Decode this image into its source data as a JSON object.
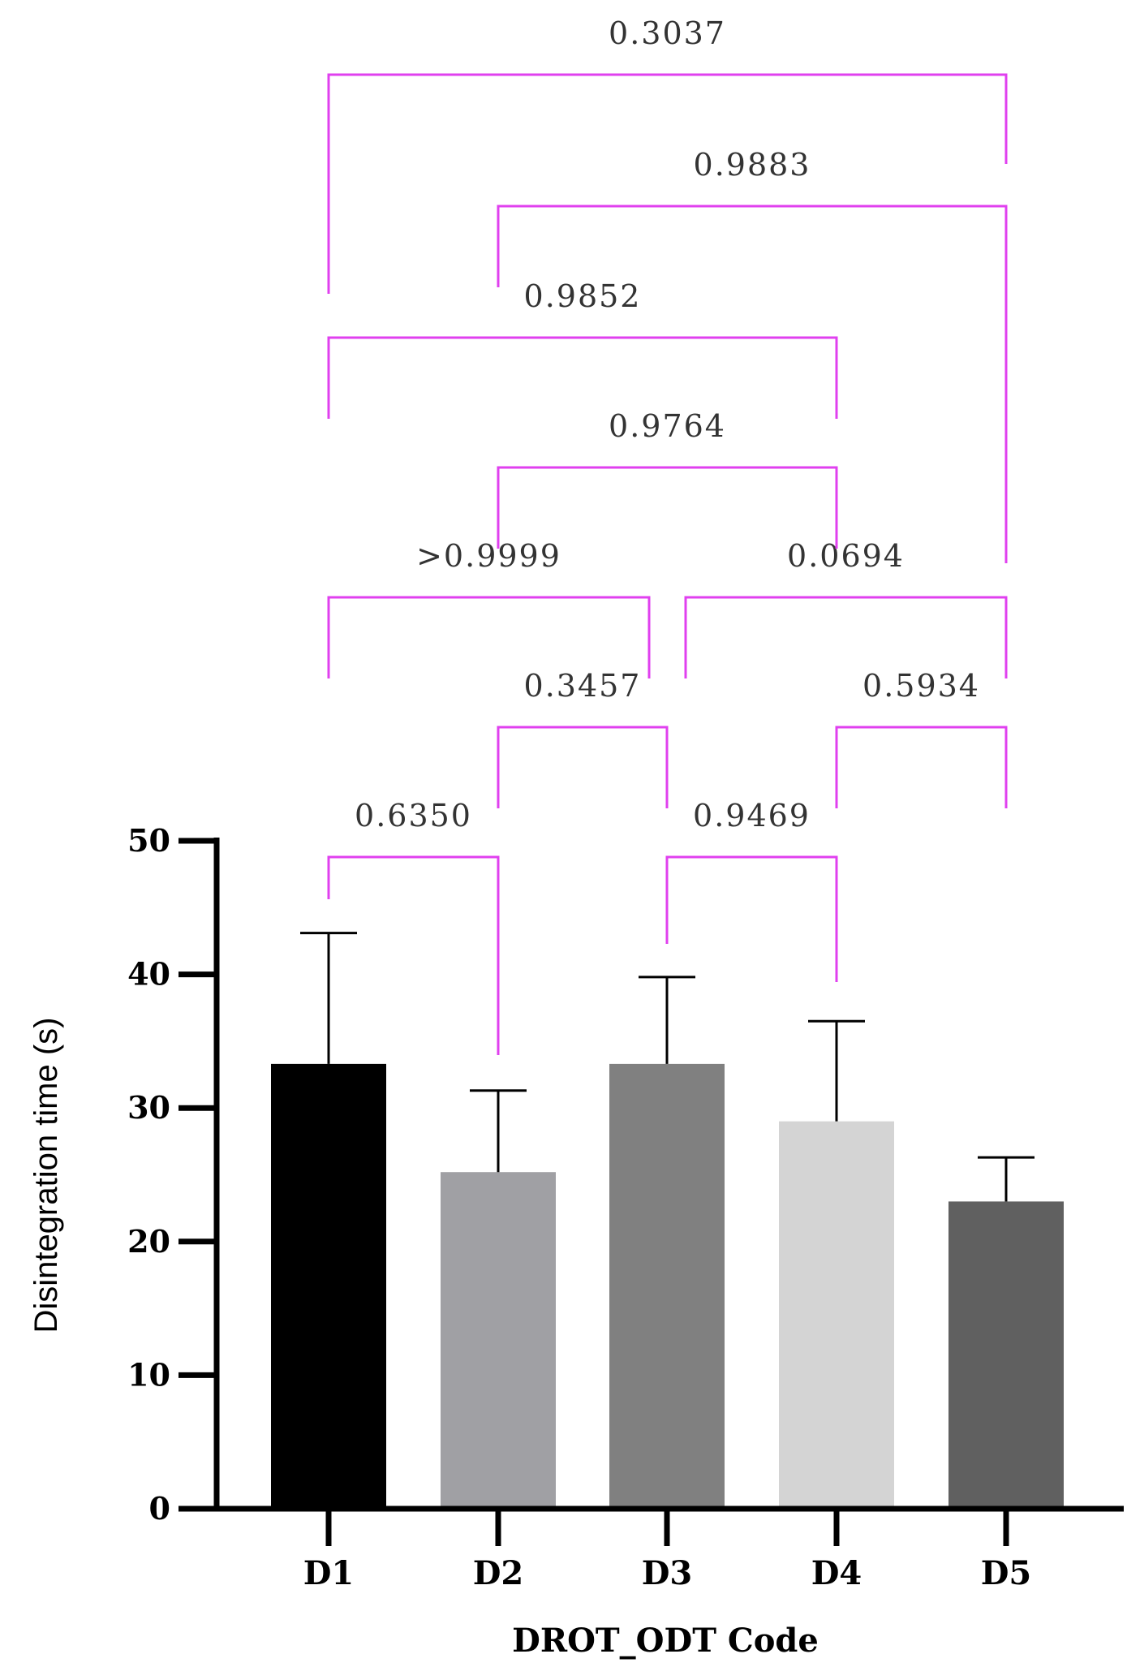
{
  "chart_data": {
    "type": "bar",
    "categories": [
      "D1",
      "D2",
      "D3",
      "D4",
      "D5"
    ],
    "values": [
      33.3,
      25.2,
      33.3,
      29.0,
      23.0
    ],
    "error_upper": [
      43.1,
      31.3,
      39.8,
      36.5,
      26.3
    ],
    "bar_colors": [
      "#000000",
      "#a0a0a4",
      "#808080",
      "#d4d4d4",
      "#606060"
    ],
    "xlabel": "DROT_ODT Code",
    "ylabel": "Disintegration time (s)",
    "ylim": [
      0,
      50
    ],
    "yticks": [
      0,
      10,
      20,
      30,
      40,
      50
    ],
    "bracket_color": "#e040ef",
    "comparisons": [
      {
        "from": "D1",
        "to": "D2",
        "p": "0.6350",
        "level": 0
      },
      {
        "from": "D3",
        "to": "D4",
        "p": "0.9469",
        "level": 0
      },
      {
        "from": "D2",
        "to": "D3",
        "p": "0.3457",
        "level": 1
      },
      {
        "from": "D4",
        "to": "D5",
        "p": "0.5934",
        "level": 1
      },
      {
        "from": "D1",
        "to": "D3",
        "p": ">0.9999",
        "level": 2
      },
      {
        "from": "D3",
        "to": "D5",
        "p": "0.0694",
        "level": 2
      },
      {
        "from": "D2",
        "to": "D4",
        "p": "0.9764",
        "level": 3
      },
      {
        "from": "D1",
        "to": "D4",
        "p": "0.9852",
        "level": 4
      },
      {
        "from": "D2",
        "to": "D5",
        "p": "0.9883",
        "level": 5
      },
      {
        "from": "D1",
        "to": "D5",
        "p": "0.3037",
        "level": 6
      }
    ]
  }
}
